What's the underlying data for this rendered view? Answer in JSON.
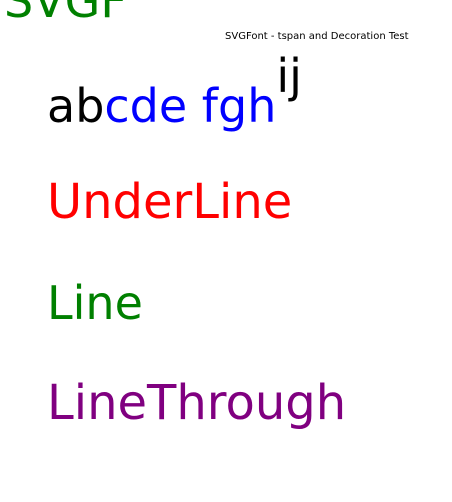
{
  "top_clipped_text": "SVGF",
  "title": "SVGFont - tspan and Decoration Test",
  "line1": {
    "part_black": "ab",
    "part_blue": "cde fgh",
    "part_superscript": "ij"
  },
  "underline_text": "UnderLine",
  "line_text": "Line",
  "linethrough_text": "LineThrough",
  "colors": {
    "black": "#000000",
    "blue": "#0000ff",
    "red": "#ff0000",
    "green": "#008000",
    "purple": "#800080"
  }
}
